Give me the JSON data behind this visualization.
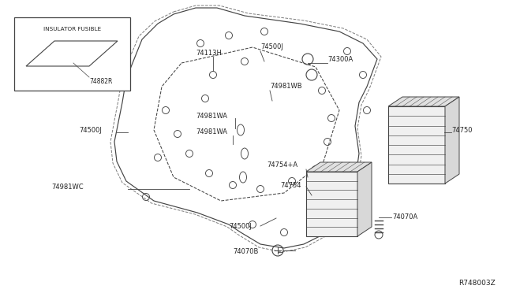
{
  "bg_color": "#ffffff",
  "line_color": "#444444",
  "text_color": "#222222",
  "title_ref": "R748003Z",
  "inset_label": "INSULATOR FUSIBLE",
  "inset_part": "74882R",
  "fig_w": 6.4,
  "fig_h": 3.72,
  "dpi": 100,
  "xlim": [
    0,
    640
  ],
  "ylim": [
    0,
    372
  ]
}
